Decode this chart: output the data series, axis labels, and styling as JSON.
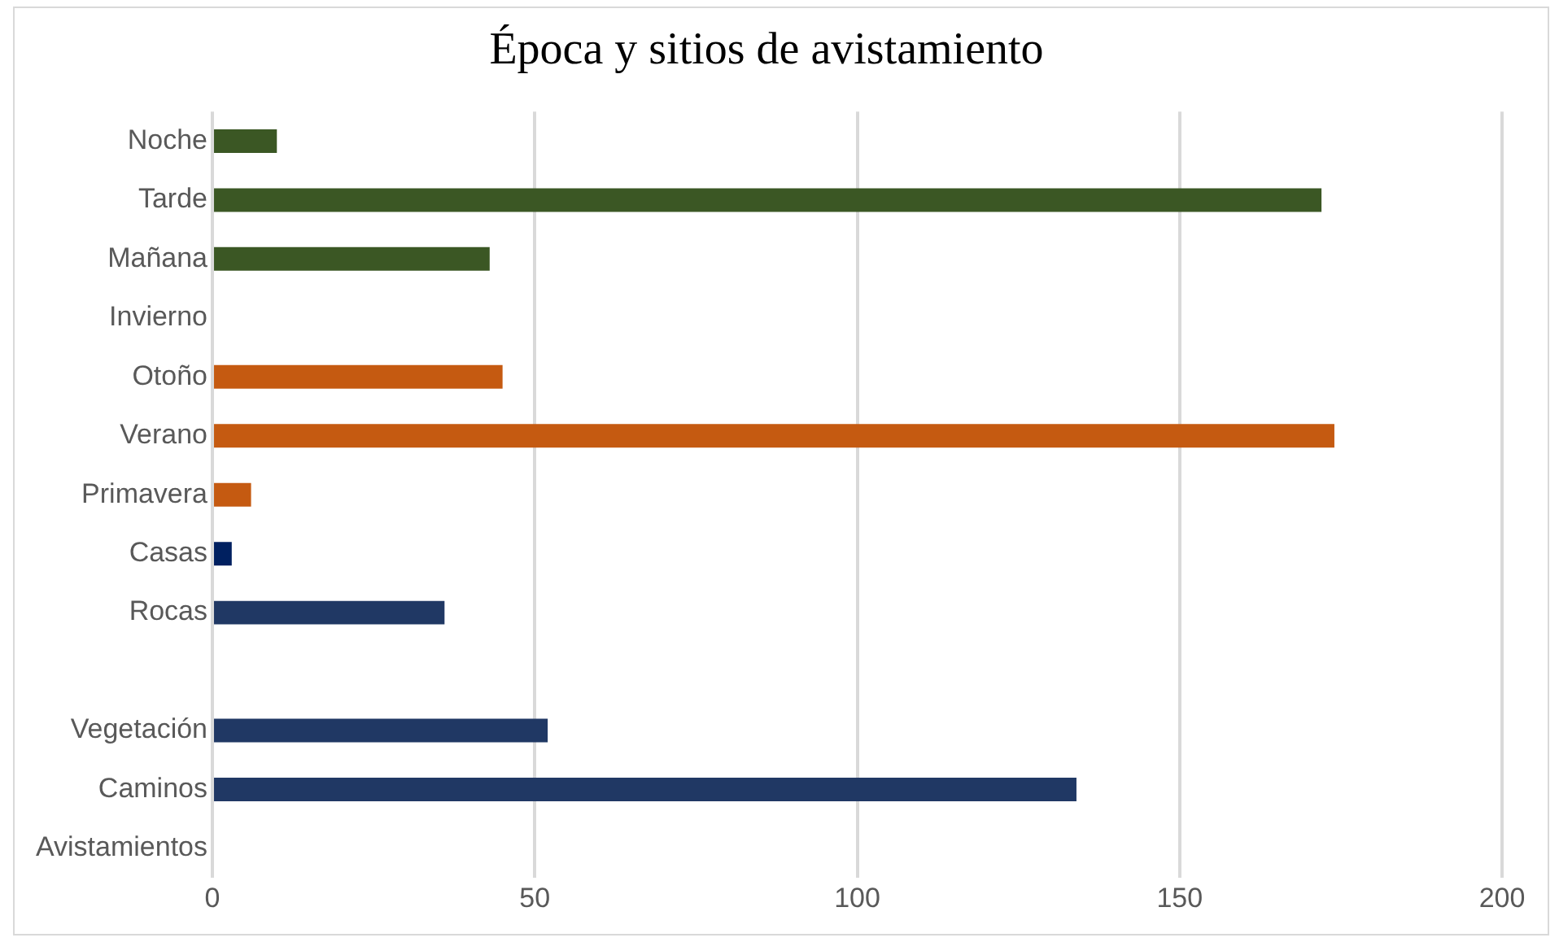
{
  "chart_data": {
    "type": "bar",
    "orientation": "horizontal",
    "title": "Época y sitios de avistamiento",
    "categories": [
      "Noche",
      "Tarde",
      "Mañana",
      "Invierno",
      "Otoño",
      "Verano",
      "Primavera",
      "Casas",
      "Rocas",
      null,
      "Vegetación",
      "Caminos",
      "Avistamientos"
    ],
    "values": [
      10,
      172,
      43,
      null,
      45,
      174,
      6,
      3,
      36,
      null,
      52,
      134,
      null
    ],
    "colors": [
      "#3b5724",
      "#3b5724",
      "#3b5724",
      "#3b5724",
      "#c55a11",
      "#c55a11",
      "#c55a11",
      "#002060",
      "#203864",
      "#203864",
      "#203864",
      "#203864",
      "#203864"
    ],
    "xlim": [
      0,
      200
    ],
    "xticks": [
      0,
      50,
      100,
      150,
      200
    ],
    "grid": "x",
    "legend": false
  }
}
